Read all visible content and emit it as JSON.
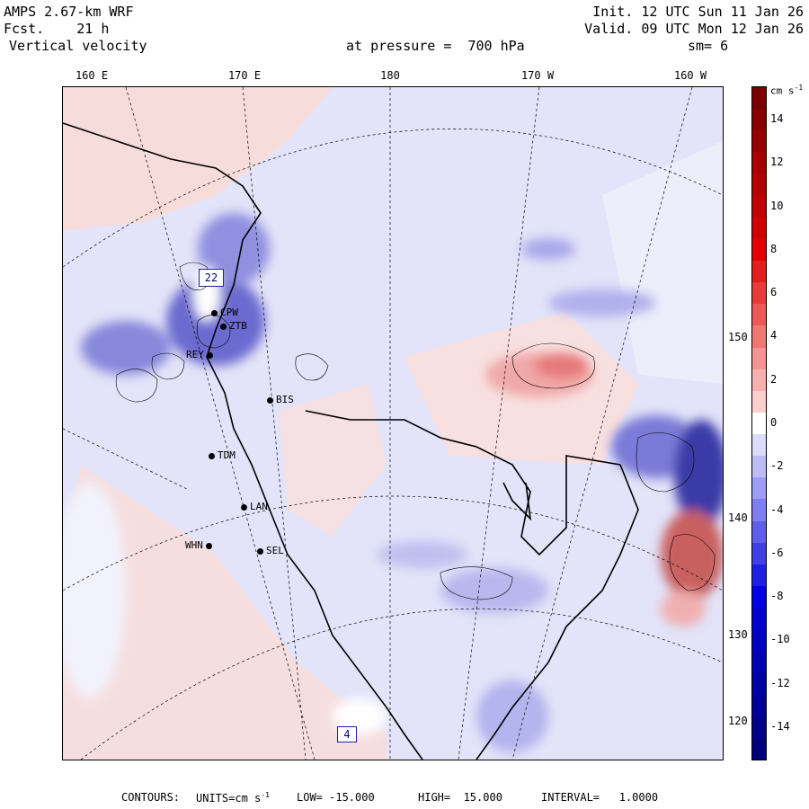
{
  "header": {
    "model": "AMPS 2.67-km WRF",
    "fcst_label": "Fcst.",
    "fcst_value": "21 h",
    "field": "Vertical velocity",
    "init": "Init. 12 UTC Sun 11 Jan 26",
    "valid": "Valid. 09 UTC Mon 12 Jan 26",
    "pressure": "at pressure =  700 hPa",
    "smoothing": "sm= 6"
  },
  "longitude_labels": [
    "160 E",
    "170 E",
    "180",
    "170 W",
    "160 W"
  ],
  "latitude_labels": [
    "150 W",
    "140 W",
    "130 W",
    "120 W"
  ],
  "stations": [
    {
      "id": "cpw",
      "label": "CPW"
    },
    {
      "id": "ztb",
      "label": "ZTB"
    },
    {
      "id": "rey",
      "label": "REY"
    },
    {
      "id": "bis",
      "label": "BIS"
    },
    {
      "id": "tdm",
      "label": "TDM"
    },
    {
      "id": "lan",
      "label": "LAN"
    },
    {
      "id": "whn",
      "label": "WHN"
    },
    {
      "id": "sel",
      "label": "SEL"
    }
  ],
  "map_markers": [
    "22",
    "4"
  ],
  "colorbar": {
    "units_label": "cm s",
    "units_exponent": "-1",
    "tick_labels": [
      "14",
      "12",
      "10",
      "8",
      "6",
      "4",
      "2",
      "0",
      "-2",
      "-4",
      "-6",
      "-8",
      "-10",
      "-12",
      "-14"
    ],
    "colors": {
      "max_red": "#7a0000",
      "mid_red": "#e00000",
      "light_red": "#fbd0cc",
      "zero": "#ffffff",
      "light_blue": "#dcdcfa",
      "mid_blue": "#0000e0",
      "max_blue": "#00007a"
    }
  },
  "footer": {
    "contours_label": "CONTOURS:",
    "units_text": "UNITS=cm s",
    "units_exponent": "-1",
    "low": "LOW= -15.000",
    "high": "HIGH=  15.000",
    "interval": "INTERVAL=   1.0000"
  }
}
